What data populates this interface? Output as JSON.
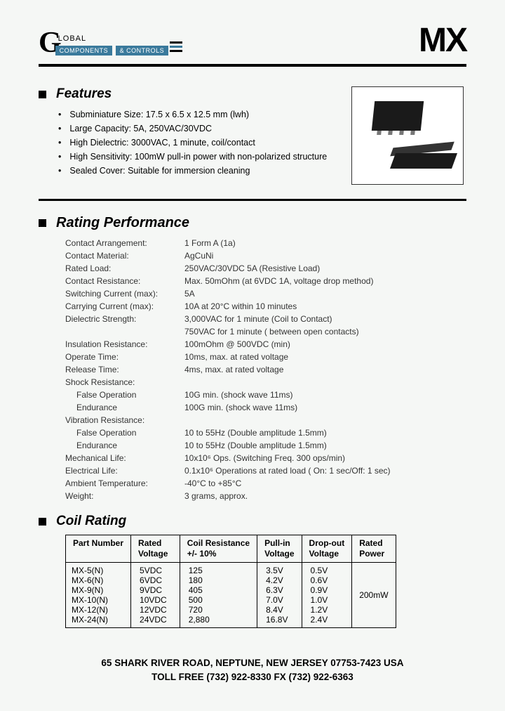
{
  "logo": {
    "letter": "G",
    "top_text": "LOBAL",
    "sub_text": "COMPONENTS",
    "sub_text2": "& CONTROLS"
  },
  "product_code": "MX",
  "features": {
    "heading": "Features",
    "items": [
      "Subminiature Size: 17.5 x 6.5 x 12.5 mm (lwh)",
      "Large Capacity: 5A, 250VAC/30VDC",
      " High Dielectric: 3000VAC, 1 minute, coil/contact",
      "High Sensitivity: 100mW pull-in power with non-polarized structure",
      "Sealed Cover: Suitable for immersion cleaning"
    ]
  },
  "rating": {
    "heading": "Rating Performance",
    "rows": [
      {
        "label": "Contact Arrangement:",
        "value": "1 Form A (1a)"
      },
      {
        "label": "Contact Material:",
        "value": "AgCuNi"
      },
      {
        "label": "Rated Load:",
        "value": "250VAC/30VDC 5A (Resistive Load)"
      },
      {
        "label": "Contact Resistance:",
        "value": "Max. 50mOhm (at 6VDC 1A, voltage drop method)"
      },
      {
        "label": "Switching Current (max):",
        "value": "5A"
      },
      {
        "label": "Carrying Current (max):",
        "value": "10A at 20°C within 10 minutes"
      },
      {
        "label": "Dielectric Strength:",
        "value": "3,000VAC for 1 minute (Coil to Contact)"
      },
      {
        "label": "",
        "value": "750VAC for 1 minute ( between open contacts)"
      },
      {
        "label": "Insulation Resistance:",
        "value": "100mOhm @ 500VDC (min)"
      },
      {
        "label": "Operate Time:",
        "value": "10ms, max. at rated voltage"
      },
      {
        "label": "Release Time:",
        "value": "4ms, max. at rated voltage"
      },
      {
        "label": "Shock Resistance:",
        "value": ""
      },
      {
        "sublabel": "False Operation",
        "value": "10G min. (shock wave 11ms)"
      },
      {
        "sublabel": "Endurance",
        "value": "100G min. (shock wave 11ms)"
      },
      {
        "label": "Vibration Resistance:",
        "value": ""
      },
      {
        "sublabel": "False Operation",
        "value": "10 to 55Hz (Double amplitude 1.5mm)"
      },
      {
        "sublabel": "Endurance",
        "value": "10 to 55Hz (Double amplitude 1.5mm)"
      },
      {
        "label": "Mechanical Life:",
        "value": "10x10⁶ Ops. (Switching Freq. 300 ops/min)"
      },
      {
        "label": "Electrical Life:",
        "value": "0.1x10⁶ Operations at rated load ( On: 1 sec/Off: 1 sec)"
      },
      {
        "label": "Ambient Temperature:",
        "value": "-40°C to +85°C"
      },
      {
        "label": "Weight:",
        "value": "3 grams, approx."
      }
    ]
  },
  "coil": {
    "heading": "Coil Rating",
    "headers": [
      "Part Number",
      "Rated\nVoltage",
      "Coil Resistance\n+/- 10%",
      "Pull-in\nVoltage",
      "Drop-out\nVoltage",
      "Rated\nPower"
    ],
    "parts": [
      "MX-5(N)",
      "MX-6(N)",
      "MX-9(N)",
      "MX-10(N)",
      "MX-12(N)",
      "MX-24(N)"
    ],
    "rated_voltage": [
      "5VDC",
      "6VDC",
      "9VDC",
      "10VDC",
      "12VDC",
      "24VDC"
    ],
    "resistance": [
      "125",
      "180",
      "405",
      "500",
      "720",
      "2,880"
    ],
    "pullin": [
      "3.5V",
      "4.2V",
      "6.3V",
      "7.0V",
      "8.4V",
      "16.8V"
    ],
    "dropout": [
      "0.5V",
      "0.6V",
      "0.9V",
      "1.0V",
      "1.2V",
      "2.4V"
    ],
    "power": "200mW"
  },
  "footer": {
    "line1": "65 SHARK RIVER ROAD, NEPTUNE, NEW JERSEY  07753-7423  USA",
    "line2": "TOLL FREE (732) 922-8330  FX (732) 922-6363"
  },
  "colors": {
    "accent": "#3a7a9c",
    "text": "#000000",
    "background": "#f5f7f5"
  }
}
